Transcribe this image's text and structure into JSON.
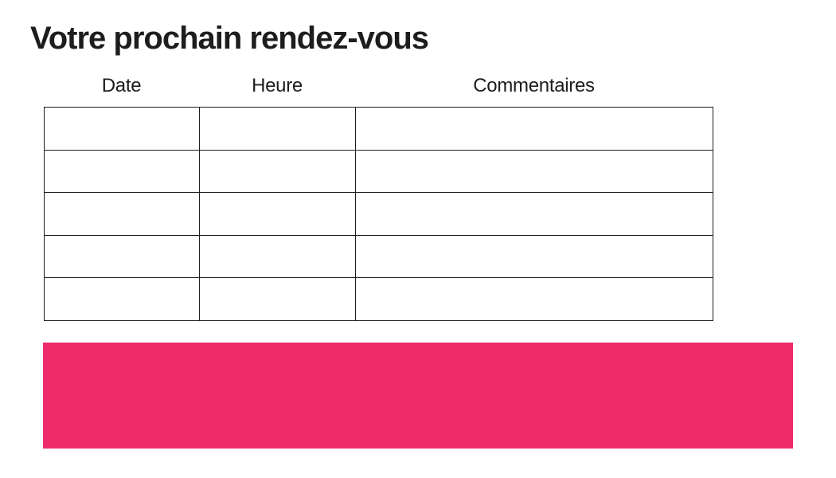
{
  "page": {
    "title": "Votre prochain rendez-vous"
  },
  "appointments_table": {
    "columns": [
      "Date",
      "Heure",
      "Commentaires"
    ],
    "rows": [
      {
        "date": "",
        "heure": "",
        "commentaires": ""
      },
      {
        "date": "",
        "heure": "",
        "commentaires": ""
      },
      {
        "date": "",
        "heure": "",
        "commentaires": ""
      },
      {
        "date": "",
        "heure": "",
        "commentaires": ""
      },
      {
        "date": "",
        "heure": "",
        "commentaires": ""
      }
    ]
  },
  "banner": {
    "text": "",
    "color": "#EE2C6C"
  },
  "colors": {
    "accent_pink": "#EE2C6C",
    "title_text": "#1d1d1b",
    "table_border": "#1d1d1b",
    "page_background": "#ffffff"
  }
}
